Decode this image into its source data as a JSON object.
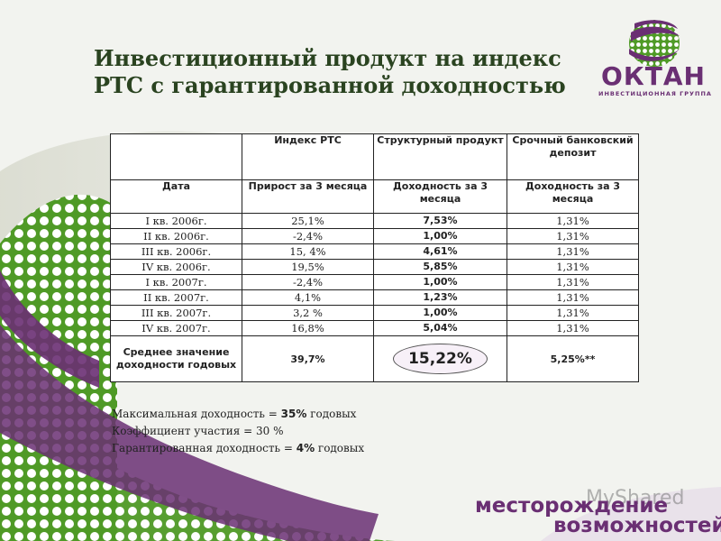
{
  "title": {
    "line1": "Инвестиционный продукт на индекс",
    "line2": "РТС с гарантированной доходностью"
  },
  "logo": {
    "name": "ОКТАН",
    "subtitle": "ИНВЕСТИЦИОННАЯ ГРУППА"
  },
  "table": {
    "group_headers": [
      "Индекс РТС",
      "Структурный продукт",
      "Срочный банковский депозит"
    ],
    "col_headers": [
      "Дата",
      "Прирост за 3 месяца",
      "Доходность за 3 месяца",
      "Доходность за 3 месяца"
    ],
    "rows": [
      {
        "date": "I кв. 2006г.",
        "rts": "25,1%",
        "product": "7,53%",
        "deposit": "1,31%"
      },
      {
        "date": "II кв. 2006г.",
        "rts": "-2,4%",
        "product": "1,00%",
        "deposit": "1,31%"
      },
      {
        "date": "III кв. 2006г.",
        "rts": "15, 4%",
        "product": "4,61%",
        "deposit": "1,31%"
      },
      {
        "date": "IV кв. 2006г.",
        "rts": "19,5%",
        "product": "5,85%",
        "deposit": "1,31%"
      },
      {
        "date": "I кв. 2007г.",
        "rts": "-2,4%",
        "product": "1,00%",
        "deposit": "1,31%"
      },
      {
        "date": "II кв. 2007г.",
        "rts": "4,1%",
        "product": "1,23%",
        "deposit": "1,31%"
      },
      {
        "date": "III кв. 2007г.",
        "rts": "3,2 %",
        "product": "1,00%",
        "deposit": "1,31%"
      },
      {
        "date": "IV кв. 2007г.",
        "rts": "16,8%",
        "product": "5,04%",
        "deposit": "1,31%"
      }
    ],
    "summary": {
      "label": "Среднее значение доходности годовых",
      "rts": "39,7%",
      "product": "15,22%",
      "deposit": "5,25%**"
    }
  },
  "notes": [
    {
      "text": "Максимальная доходность = ",
      "value": "35%",
      "suffix": " годовых"
    },
    {
      "text": "Коэффициент участия = 30 %",
      "value": "",
      "suffix": ""
    },
    {
      "text": "Гарантированная доходность = ",
      "value": "4%",
      "suffix": " годовых"
    }
  ],
  "watermark": {
    "line1": "месторождение",
    "line2": "возможностей",
    "brand": "MyShared"
  },
  "colors": {
    "title": "#2a4320",
    "accent": "#7b2a88",
    "swirl_purple": "#6a2f73",
    "swirl_green": "#5aa02c"
  }
}
